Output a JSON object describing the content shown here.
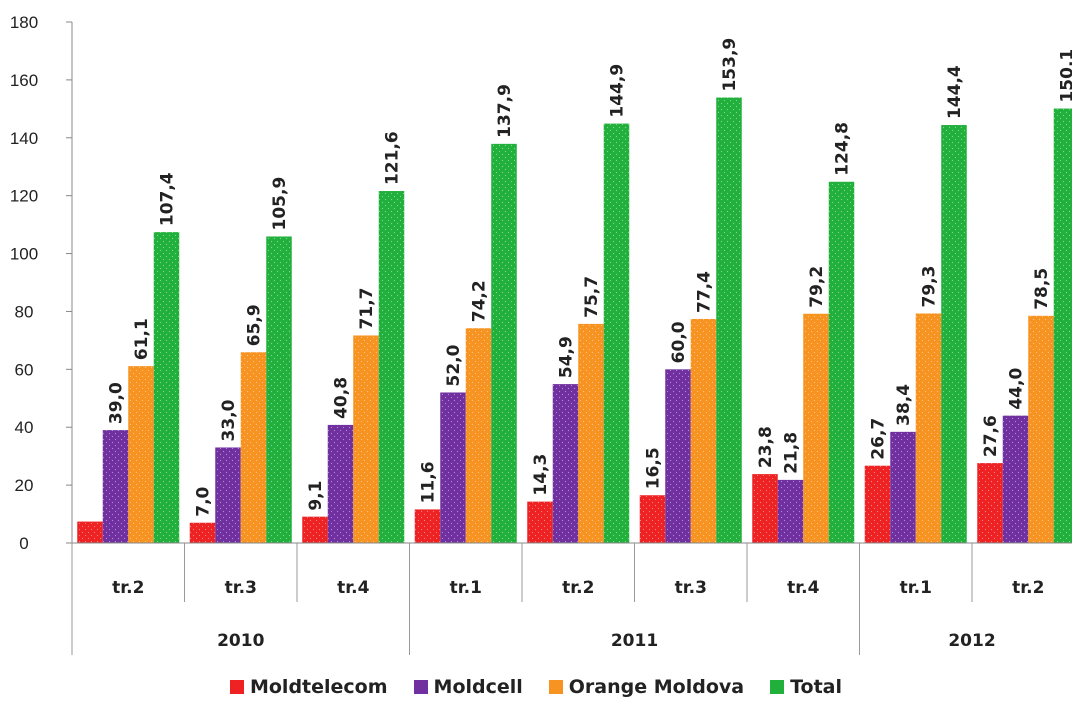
{
  "chart_data": {
    "type": "bar",
    "categories": [
      "tr.2",
      "tr.3",
      "tr.4",
      "tr.1",
      "tr.2",
      "tr.3",
      "tr.4",
      "tr.1",
      "tr.2"
    ],
    "groups": [
      {
        "label": "2010",
        "span": 3
      },
      {
        "label": "2011",
        "span": 4
      },
      {
        "label": "2012",
        "span": 2
      }
    ],
    "series": [
      {
        "name": "Moldtelecom",
        "color": "#ee2222",
        "values": [
          7.4,
          7.0,
          9.1,
          11.6,
          14.3,
          16.5,
          23.8,
          26.7,
          27.6
        ],
        "labels": [
          "",
          "7,0",
          "9,1",
          "11,6",
          "14,3",
          "16,5",
          "23,8",
          "26,7",
          "27,6"
        ]
      },
      {
        "name": "Moldcell",
        "color": "#7030a0",
        "values": [
          39.0,
          33.0,
          40.8,
          52.0,
          54.9,
          60.0,
          21.8,
          38.4,
          44.0
        ],
        "labels": [
          "39,0",
          "33,0",
          "40,8",
          "52,0",
          "54,9",
          "60,0",
          "21,8",
          "38,4",
          "44,0"
        ]
      },
      {
        "name": "Orange Moldova",
        "color": "#f79321",
        "values": [
          61.1,
          65.9,
          71.7,
          74.2,
          75.7,
          77.4,
          79.2,
          79.3,
          78.5
        ],
        "labels": [
          "61,1",
          "65,9",
          "71,7",
          "74,2",
          "75,7",
          "77,4",
          "79,2",
          "79,3",
          "78,5"
        ]
      },
      {
        "name": "Total",
        "color": "#22b03c",
        "values": [
          107.4,
          105.9,
          121.6,
          137.9,
          144.9,
          153.9,
          124.8,
          144.4,
          150.1
        ],
        "labels": [
          "107,4",
          "105,9",
          "121,6",
          "137,9",
          "144,9",
          "153,9",
          "124,8",
          "144,4",
          "150,1"
        ]
      }
    ],
    "ylim": [
      0,
      180
    ],
    "yticks": [
      0,
      20,
      40,
      60,
      80,
      100,
      120,
      140,
      160,
      180
    ],
    "grid": false,
    "legend_position": "bottom"
  }
}
